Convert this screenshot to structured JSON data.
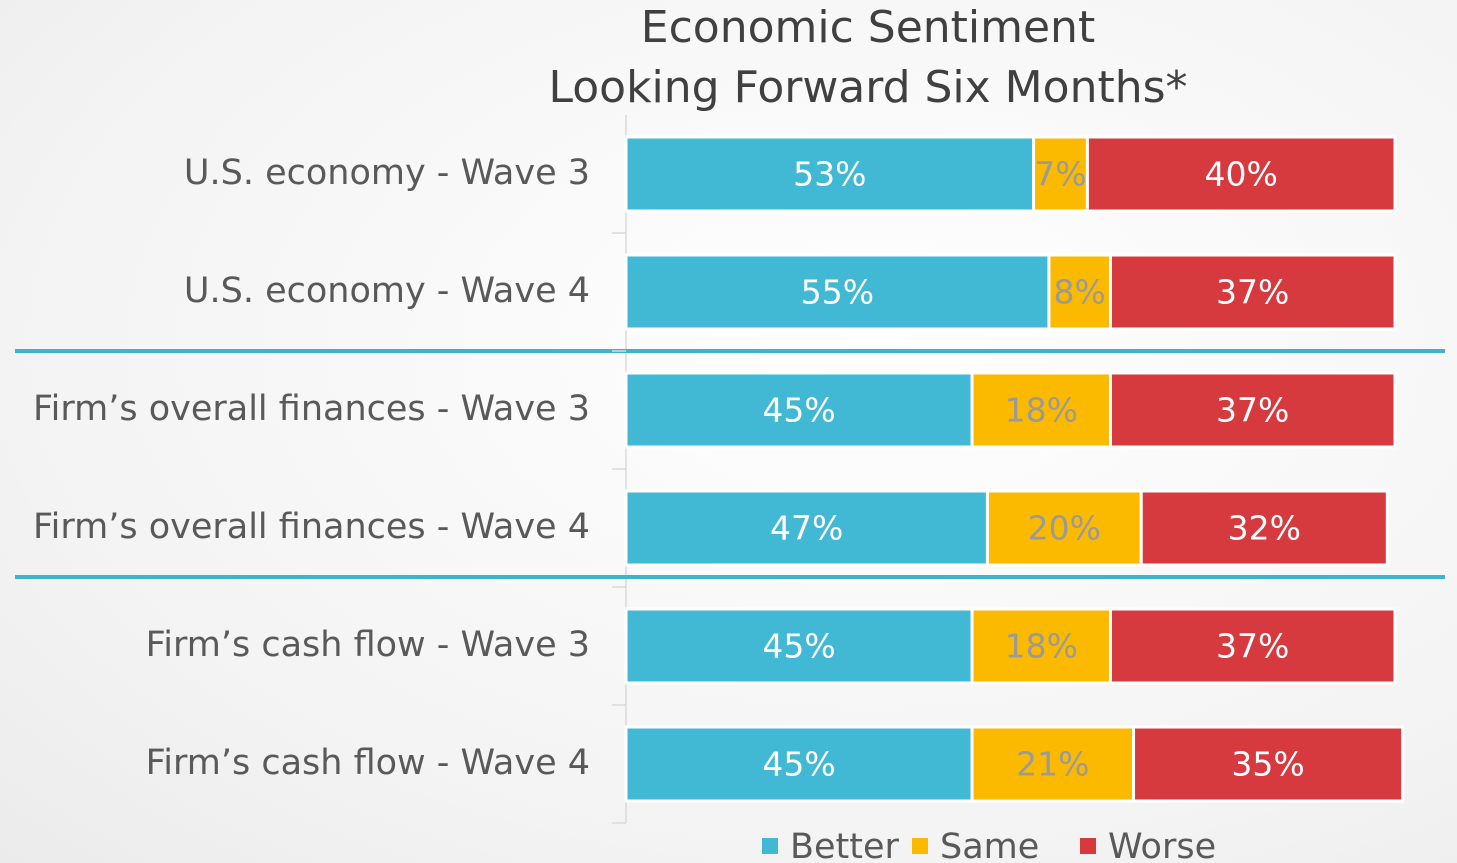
{
  "chart_data": {
    "type": "bar",
    "orientation": "horizontal",
    "stacked": true,
    "title": [
      "Economic Sentiment",
      "Looking Forward Six Months*"
    ],
    "categories": [
      "U.S. economy - Wave 3",
      "U.S. economy - Wave 4",
      "Firm’s overall finances - Wave 3",
      "Firm’s overall finances - Wave 4",
      "Firm’s cash flow  - Wave 3",
      "Firm’s cash flow  - Wave 4"
    ],
    "series": [
      {
        "name": "Better",
        "color": "#41b9d4",
        "values": [
          53,
          55,
          45,
          47,
          45,
          45
        ],
        "value_labels": [
          "53%",
          "55%",
          "45%",
          "47%",
          "45%",
          "45%"
        ]
      },
      {
        "name": "Same",
        "color": "#fbb900",
        "values": [
          7,
          8,
          18,
          20,
          18,
          21
        ],
        "value_labels": [
          "7%",
          "8%",
          "18%",
          "20%",
          "18%",
          "21%"
        ]
      },
      {
        "name": "Worse",
        "color": "#d63a3f",
        "values": [
          40,
          37,
          37,
          32,
          37,
          35
        ],
        "value_labels": [
          "40%",
          "37%",
          "37%",
          "32%",
          "37%",
          "35%"
        ]
      }
    ],
    "xlim": [
      0,
      100
    ],
    "legend": "bottom"
  }
}
